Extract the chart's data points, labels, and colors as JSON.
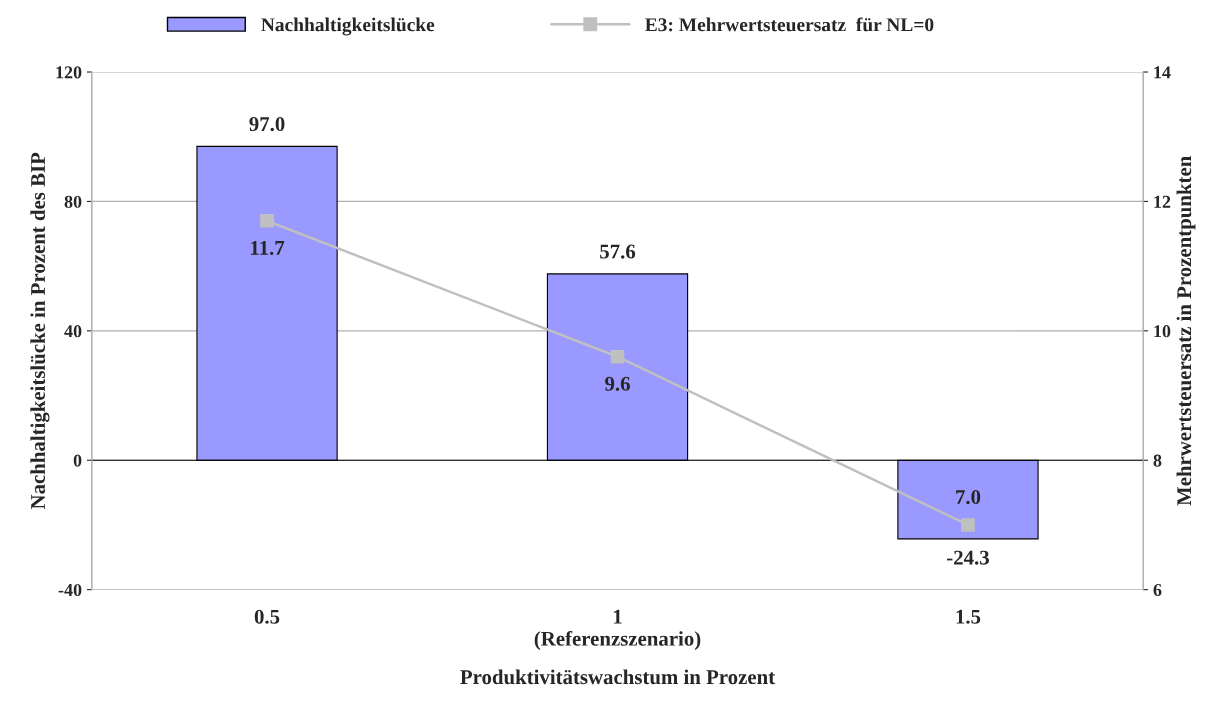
{
  "chart_data": {
    "type": "bar",
    "categories": [
      "0.5",
      "1\n(Referenzszenario)",
      "1.5"
    ],
    "xlabel": "Produktivitätswachstum in Prozent",
    "ylabel": "Nachhaltigkeitslücke in Prozent des BIP",
    "y2label": "Mehrwertsteuersatz in Prozentpunkten",
    "series": [
      {
        "name": "Nachhaltigkeitslücke",
        "color": "#9999ff",
        "values": [
          97.0,
          57.6,
          -24.3
        ],
        "value_labels": [
          "97.0",
          "57.6",
          "-24.3"
        ]
      },
      {
        "name": "E3: Mehrwertsteuersatz  für NL=0",
        "type": "line",
        "axis": "y2",
        "color": "#c0c0c0",
        "marker": "square",
        "values": [
          11.7,
          9.6,
          7.0
        ],
        "value_labels": [
          "11.7",
          "9.6",
          "7.0"
        ]
      }
    ],
    "ylim": [
      -40,
      120
    ],
    "yticks": [
      -40,
      0,
      40,
      80,
      120
    ],
    "y2lim": [
      6,
      14
    ],
    "y2ticks": [
      6,
      8,
      10,
      12,
      14
    ],
    "grid": "y",
    "legend": "top"
  }
}
